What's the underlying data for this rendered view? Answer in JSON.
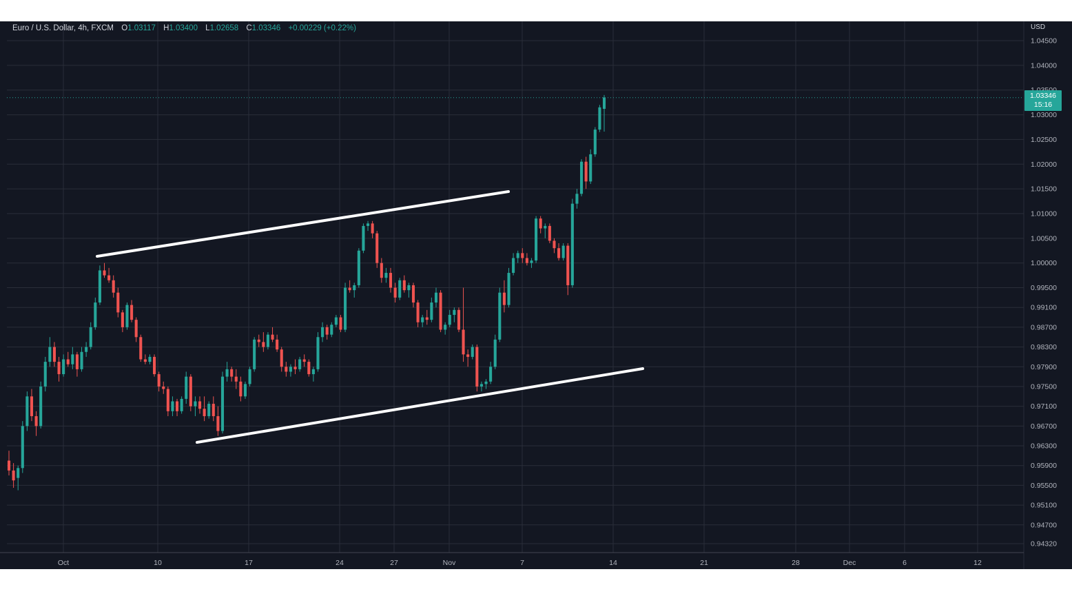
{
  "legend": {
    "symbol": "Euro / U.S. Dollar, 4h, FXCM",
    "open_label": "O",
    "open": "1.03117",
    "high_label": "H",
    "high": "1.03400",
    "low_label": "L",
    "low": "1.02658",
    "close_label": "C",
    "close": "1.03346",
    "change": "+0.00229 (+0.22%)"
  },
  "price_axis": {
    "currency": "USD",
    "last_price": "1.03346",
    "countdown": "15:16"
  },
  "colors": {
    "up": "#26a69a",
    "down": "#ef5350",
    "background": "#131722",
    "grid": "#2a2e39",
    "trendline": "#ffffff"
  },
  "chart_data": {
    "type": "candlestick",
    "instrument": "Euro / U.S. Dollar",
    "timeframe": "4h",
    "source": "FXCM",
    "x_ticks": [
      "Oct",
      "10",
      "17",
      "24",
      "27",
      "Nov",
      "7",
      "14",
      "21",
      "28",
      "Dec",
      "6",
      "12"
    ],
    "y_ticks": [
      "1.04500",
      "1.04000",
      "1.03500",
      "1.03000",
      "1.02500",
      "1.02000",
      "1.01500",
      "1.01000",
      "1.00500",
      "1.00000",
      "0.99500",
      "0.99100",
      "0.98700",
      "0.98300",
      "0.97900",
      "0.97500",
      "0.97100",
      "0.96700",
      "0.96300",
      "0.95900",
      "0.95500",
      "0.95100",
      "0.94700",
      "0.94320"
    ],
    "candles_approx": [
      [
        0.96,
        0.962,
        0.957,
        0.958
      ],
      [
        0.958,
        0.9595,
        0.9545,
        0.956
      ],
      [
        0.9565,
        0.959,
        0.954,
        0.9585
      ],
      [
        0.9585,
        0.968,
        0.9575,
        0.967
      ],
      [
        0.967,
        0.974,
        0.966,
        0.973
      ],
      [
        0.973,
        0.9745,
        0.968,
        0.969
      ],
      [
        0.969,
        0.97,
        0.965,
        0.967
      ],
      [
        0.967,
        0.976,
        0.9665,
        0.975
      ],
      [
        0.975,
        0.981,
        0.974,
        0.98
      ],
      [
        0.98,
        0.985,
        0.979,
        0.983
      ],
      [
        0.983,
        0.984,
        0.979,
        0.98
      ],
      [
        0.98,
        0.981,
        0.976,
        0.9775
      ],
      [
        0.9775,
        0.9815,
        0.977,
        0.9805
      ],
      [
        0.9805,
        0.982,
        0.979,
        0.9795
      ],
      [
        0.9795,
        0.983,
        0.9785,
        0.9815
      ],
      [
        0.9815,
        0.982,
        0.977,
        0.9785
      ],
      [
        0.9785,
        0.983,
        0.978,
        0.982
      ],
      [
        0.982,
        0.984,
        0.981,
        0.983
      ],
      [
        0.983,
        0.988,
        0.9825,
        0.987
      ],
      [
        0.987,
        0.993,
        0.9865,
        0.992
      ],
      [
        0.992,
        0.9995,
        0.9915,
        0.9985
      ],
      [
        0.9985,
        1.0,
        0.997,
        0.9975
      ],
      [
        0.9975,
        0.999,
        0.996,
        0.9965
      ],
      [
        0.9965,
        0.9975,
        0.993,
        0.994
      ],
      [
        0.994,
        0.995,
        0.989,
        0.99
      ],
      [
        0.99,
        0.9905,
        0.986,
        0.987
      ],
      [
        0.987,
        0.992,
        0.9865,
        0.9915
      ],
      [
        0.9915,
        0.9925,
        0.988,
        0.9885
      ],
      [
        0.9885,
        0.989,
        0.984,
        0.985
      ],
      [
        0.985,
        0.9855,
        0.98,
        0.9805
      ],
      [
        0.9805,
        0.9815,
        0.9795,
        0.98
      ],
      [
        0.98,
        0.9815,
        0.9795,
        0.981
      ],
      [
        0.981,
        0.9815,
        0.977,
        0.9775
      ],
      [
        0.9775,
        0.978,
        0.974,
        0.975
      ],
      [
        0.975,
        0.976,
        0.9735,
        0.9745
      ],
      [
        0.9745,
        0.975,
        0.969,
        0.97
      ],
      [
        0.97,
        0.973,
        0.969,
        0.972
      ],
      [
        0.972,
        0.9725,
        0.969,
        0.97
      ],
      [
        0.97,
        0.973,
        0.9695,
        0.9725
      ],
      [
        0.9725,
        0.978,
        0.9715,
        0.977
      ],
      [
        0.977,
        0.9775,
        0.97,
        0.971
      ],
      [
        0.971,
        0.973,
        0.969,
        0.972
      ],
      [
        0.972,
        0.973,
        0.9695,
        0.9705
      ],
      [
        0.9705,
        0.973,
        0.968,
        0.969
      ],
      [
        0.969,
        0.972,
        0.9685,
        0.9715
      ],
      [
        0.9715,
        0.973,
        0.968,
        0.969
      ],
      [
        0.969,
        0.971,
        0.965,
        0.966
      ],
      [
        0.966,
        0.978,
        0.9655,
        0.977
      ],
      [
        0.977,
        0.98,
        0.976,
        0.9785
      ],
      [
        0.9785,
        0.979,
        0.976,
        0.977
      ],
      [
        0.977,
        0.9785,
        0.9745,
        0.976
      ],
      [
        0.976,
        0.977,
        0.972,
        0.973
      ],
      [
        0.973,
        0.976,
        0.9725,
        0.9755
      ],
      [
        0.9755,
        0.979,
        0.975,
        0.9785
      ],
      [
        0.9785,
        0.985,
        0.978,
        0.9845
      ],
      [
        0.9845,
        0.9855,
        0.983,
        0.984
      ],
      [
        0.984,
        0.986,
        0.982,
        0.983
      ],
      [
        0.983,
        0.986,
        0.9825,
        0.9855
      ],
      [
        0.9855,
        0.987,
        0.984,
        0.9845
      ],
      [
        0.9845,
        0.9855,
        0.982,
        0.9825
      ],
      [
        0.9825,
        0.983,
        0.978,
        0.979
      ],
      [
        0.979,
        0.98,
        0.977,
        0.978
      ],
      [
        0.978,
        0.9795,
        0.977,
        0.979
      ],
      [
        0.979,
        0.9805,
        0.9775,
        0.9785
      ],
      [
        0.9785,
        0.981,
        0.978,
        0.9805
      ],
      [
        0.9805,
        0.9815,
        0.979,
        0.98
      ],
      [
        0.98,
        0.9805,
        0.977,
        0.9775
      ],
      [
        0.9775,
        0.979,
        0.976,
        0.9785
      ],
      [
        0.9785,
        0.986,
        0.978,
        0.985
      ],
      [
        0.985,
        0.988,
        0.984,
        0.987
      ],
      [
        0.987,
        0.9875,
        0.9845,
        0.9855
      ],
      [
        0.9855,
        0.988,
        0.985,
        0.9875
      ],
      [
        0.9875,
        0.9895,
        0.987,
        0.989
      ],
      [
        0.989,
        0.9895,
        0.986,
        0.9865
      ],
      [
        0.9865,
        0.996,
        0.986,
        0.995
      ],
      [
        0.995,
        0.9965,
        0.994,
        0.9945
      ],
      [
        0.9945,
        0.996,
        0.993,
        0.9955
      ],
      [
        0.9955,
        1.003,
        0.995,
        1.0025
      ],
      [
        1.0025,
        1.008,
        1.002,
        1.0075
      ],
      [
        1.0075,
        1.0085,
        1.0065,
        1.008
      ],
      [
        1.008,
        1.0085,
        1.005,
        1.006
      ],
      [
        1.006,
        1.0065,
        0.999,
        1.0
      ],
      [
        1.0,
        1.001,
        0.996,
        0.997
      ],
      [
        0.997,
        0.999,
        0.996,
        0.998
      ],
      [
        0.998,
        0.999,
        0.994,
        0.995
      ],
      [
        0.995,
        0.996,
        0.992,
        0.993
      ],
      [
        0.993,
        0.997,
        0.9925,
        0.9965
      ],
      [
        0.9965,
        0.9975,
        0.994,
        0.9945
      ],
      [
        0.9945,
        0.996,
        0.993,
        0.9955
      ],
      [
        0.9955,
        0.996,
        0.991,
        0.992
      ],
      [
        0.992,
        0.9925,
        0.987,
        0.988
      ],
      [
        0.988,
        0.9895,
        0.987,
        0.989
      ],
      [
        0.989,
        0.9905,
        0.9875,
        0.9885
      ],
      [
        0.9885,
        0.993,
        0.988,
        0.992
      ],
      [
        0.992,
        0.995,
        0.991,
        0.994
      ],
      [
        0.994,
        0.9945,
        0.986,
        0.9865
      ],
      [
        0.9865,
        0.988,
        0.9855,
        0.9875
      ],
      [
        0.9875,
        0.9905,
        0.987,
        0.9895
      ],
      [
        0.9895,
        0.991,
        0.988,
        0.9905
      ],
      [
        0.9905,
        0.991,
        0.986,
        0.9865
      ],
      [
        0.9865,
        0.995,
        0.98,
        0.9815
      ],
      [
        0.9815,
        0.9825,
        0.979,
        0.981
      ],
      [
        0.981,
        0.9835,
        0.9805,
        0.983
      ],
      [
        0.983,
        0.9835,
        0.974,
        0.975
      ],
      [
        0.975,
        0.976,
        0.974,
        0.9755
      ],
      [
        0.9755,
        0.9765,
        0.9745,
        0.976
      ],
      [
        0.976,
        0.98,
        0.9755,
        0.979
      ],
      [
        0.979,
        0.9855,
        0.9785,
        0.9845
      ],
      [
        0.9845,
        0.995,
        0.984,
        0.994
      ],
      [
        0.994,
        0.9965,
        0.99,
        0.9915
      ],
      [
        0.9915,
        0.999,
        0.991,
        0.998
      ],
      [
        0.998,
        1.002,
        0.9975,
        1.001
      ],
      [
        1.001,
        1.0025,
        1.0,
        1.002
      ],
      [
        1.002,
        1.003,
        1.0,
        1.001
      ],
      [
        1.001,
        1.002,
        0.9995,
        1.0
      ],
      [
        1.0,
        1.001,
        0.999,
        1.0005
      ],
      [
        1.0005,
        1.0095,
        1.0,
        1.009
      ],
      [
        1.009,
        1.0095,
        1.006,
        1.007
      ],
      [
        1.007,
        1.008,
        1.005,
        1.0075
      ],
      [
        1.0075,
        1.008,
        1.004,
        1.0045
      ],
      [
        1.0045,
        1.005,
        1.002,
        1.003
      ],
      [
        1.003,
        1.004,
        1.0005,
        1.001
      ],
      [
        1.001,
        1.004,
        1.0005,
        1.0035
      ],
      [
        1.0035,
        1.004,
        0.9935,
        0.9955
      ],
      [
        0.9955,
        1.013,
        0.995,
        1.012
      ],
      [
        1.012,
        1.015,
        1.011,
        1.014
      ],
      [
        1.014,
        1.021,
        1.0135,
        1.0205
      ],
      [
        1.0205,
        1.0215,
        1.015,
        1.0165
      ],
      [
        1.0165,
        1.023,
        1.016,
        1.022
      ],
      [
        1.022,
        1.0275,
        1.0215,
        1.027
      ],
      [
        1.027,
        1.032,
        1.0265,
        1.0315
      ],
      [
        1.0312,
        1.034,
        1.0266,
        1.0335
      ]
    ],
    "trendlines": [
      {
        "name": "upper channel",
        "from": [
          "Oct 3",
          1.0
        ],
        "to": [
          "Nov 5",
          1.0135
        ]
      },
      {
        "name": "lower channel",
        "from": [
          "Oct 12",
          0.963
        ],
        "to": [
          "Nov 15",
          0.9775
        ]
      }
    ]
  }
}
